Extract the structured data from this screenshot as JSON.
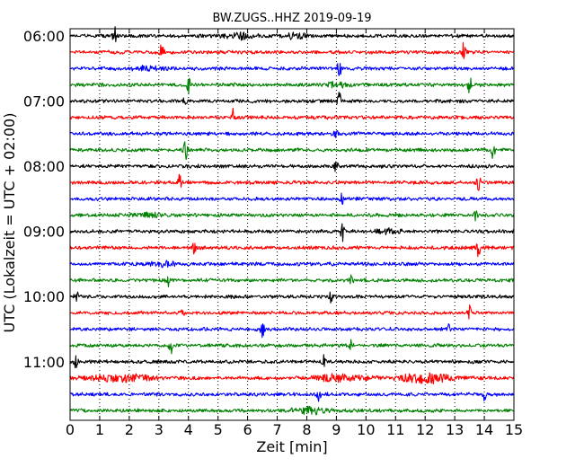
{
  "chart_data": {
    "type": "line",
    "title": "BW.ZUGS..HHZ 2019-09-19",
    "xlabel": "Zeit  [min]",
    "ylabel": "UTC (Lokalzeit = UTC + 02:00)",
    "xlim": [
      0,
      15
    ],
    "x_ticks": [
      "0",
      "1",
      "2",
      "3",
      "4",
      "5",
      "6",
      "7",
      "8",
      "9",
      "10",
      "11",
      "12",
      "13",
      "14",
      "15"
    ],
    "y_ticks": [
      "06:00",
      "07:00",
      "08:00",
      "09:00",
      "10:00",
      "11:00"
    ],
    "grid": "vertical dotted",
    "trace_interval_min": 15,
    "trace_colors": [
      "#000000",
      "#ff0000",
      "#0000ff",
      "#008000"
    ],
    "series": [
      {
        "start": "06:00",
        "color": "#000000",
        "events": [
          {
            "t": 1.5,
            "amp": 1.0
          },
          {
            "t": 5.7,
            "amp": 0.6,
            "dur": 0.5
          },
          {
            "t": 7.6,
            "amp": 0.6,
            "dur": 0.4
          }
        ]
      },
      {
        "start": "06:15",
        "color": "#ff0000",
        "events": [
          {
            "t": 3.1,
            "amp": 1.0
          },
          {
            "t": 13.3,
            "amp": 1.0
          }
        ]
      },
      {
        "start": "06:30",
        "color": "#0000ff",
        "events": [
          {
            "t": 2.6,
            "amp": 0.4,
            "dur": 0.5
          },
          {
            "t": 9.1,
            "amp": 1.0
          }
        ]
      },
      {
        "start": "06:45",
        "color": "#008000",
        "events": [
          {
            "t": 4.0,
            "amp": 1.0
          },
          {
            "t": 9.0,
            "amp": 0.5,
            "dur": 0.4
          },
          {
            "t": 13.5,
            "amp": 1.0
          }
        ]
      },
      {
        "start": "07:00",
        "color": "#000000",
        "events": [
          {
            "t": 3.9,
            "amp": 0.5
          },
          {
            "t": 9.1,
            "amp": 1.0
          }
        ]
      },
      {
        "start": "07:15",
        "color": "#ff0000",
        "events": [
          {
            "t": 5.5,
            "amp": 1.0
          }
        ]
      },
      {
        "start": "07:30",
        "color": "#0000ff",
        "events": [
          {
            "t": 9.0,
            "amp": 0.6
          }
        ]
      },
      {
        "start": "07:45",
        "color": "#008000",
        "events": [
          {
            "t": 3.9,
            "amp": 1.0
          },
          {
            "t": 14.3,
            "amp": 1.0
          }
        ]
      },
      {
        "start": "08:00",
        "color": "#000000",
        "events": [
          {
            "t": 9.0,
            "amp": 1.0
          }
        ]
      },
      {
        "start": "08:15",
        "color": "#ff0000",
        "events": [
          {
            "t": 3.7,
            "amp": 0.8
          },
          {
            "t": 13.8,
            "amp": 1.0
          }
        ]
      },
      {
        "start": "08:30",
        "color": "#0000ff",
        "events": [
          {
            "t": 9.2,
            "amp": 1.0
          }
        ]
      },
      {
        "start": "08:45",
        "color": "#008000",
        "events": [
          {
            "t": 2.6,
            "amp": 0.4,
            "dur": 0.5
          },
          {
            "t": 13.7,
            "amp": 0.6
          }
        ]
      },
      {
        "start": "09:00",
        "color": "#000000",
        "events": [
          {
            "t": 9.2,
            "amp": 1.0
          },
          {
            "t": 10.8,
            "amp": 0.5,
            "dur": 0.4
          }
        ]
      },
      {
        "start": "09:15",
        "color": "#ff0000",
        "events": [
          {
            "t": 4.2,
            "amp": 0.6
          },
          {
            "t": 13.8,
            "amp": 1.0
          }
        ]
      },
      {
        "start": "09:30",
        "color": "#0000ff",
        "events": [
          {
            "t": 3.1,
            "amp": 0.5,
            "dur": 0.4
          }
        ]
      },
      {
        "start": "09:45",
        "color": "#008000",
        "events": [
          {
            "t": 3.3,
            "amp": 0.8
          },
          {
            "t": 9.5,
            "amp": 0.5
          }
        ]
      },
      {
        "start": "10:00",
        "color": "#000000",
        "events": [
          {
            "t": 0.2,
            "amp": 0.8
          },
          {
            "t": 8.8,
            "amp": 0.6
          }
        ]
      },
      {
        "start": "10:15",
        "color": "#ff0000",
        "events": [
          {
            "t": 3.8,
            "amp": 0.6
          },
          {
            "t": 13.5,
            "amp": 0.8
          }
        ]
      },
      {
        "start": "10:30",
        "color": "#0000ff",
        "events": [
          {
            "t": 6.5,
            "amp": 0.8
          },
          {
            "t": 12.8,
            "amp": 0.8
          }
        ]
      },
      {
        "start": "10:45",
        "color": "#008000",
        "events": [
          {
            "t": 3.4,
            "amp": 1.0
          },
          {
            "t": 9.5,
            "amp": 0.5
          }
        ]
      },
      {
        "start": "11:00",
        "color": "#000000",
        "events": [
          {
            "t": 0.2,
            "amp": 0.6
          },
          {
            "t": 8.6,
            "amp": 0.8
          }
        ]
      },
      {
        "start": "11:15",
        "color": "#ff0000",
        "events": [
          {
            "t": 1.7,
            "amp": 0.7,
            "dur": 1.0
          },
          {
            "t": 9.0,
            "amp": 0.7,
            "dur": 0.9
          },
          {
            "t": 12.0,
            "amp": 1.0,
            "dur": 0.9
          }
        ]
      },
      {
        "start": "11:30",
        "color": "#0000ff",
        "events": [
          {
            "t": 8.4,
            "amp": 0.8
          },
          {
            "t": 14.0,
            "amp": 0.6
          }
        ]
      },
      {
        "start": "11:45",
        "color": "#008000",
        "events": [
          {
            "t": 8.1,
            "amp": 0.6,
            "dur": 0.6
          }
        ]
      }
    ]
  }
}
